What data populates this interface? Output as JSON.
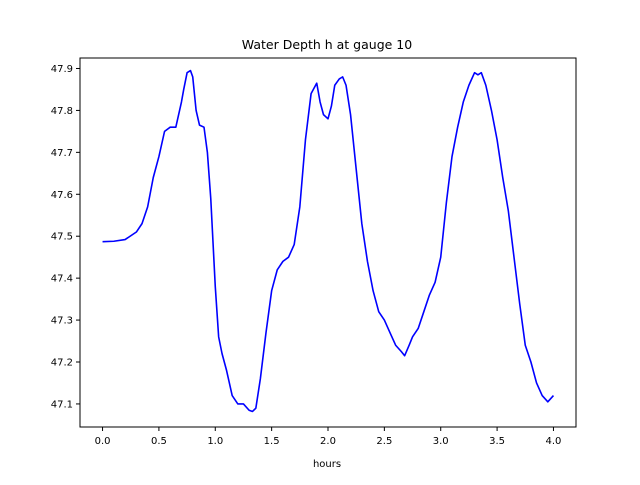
{
  "chart_data": {
    "type": "line",
    "title": "Water Depth h at gauge 10",
    "xlabel": "hours",
    "ylabel": "",
    "xlim": [
      -0.2,
      4.2
    ],
    "ylim": [
      47.045,
      47.925
    ],
    "xticks": [
      0.0,
      0.5,
      1.0,
      1.5,
      2.0,
      2.5,
      3.0,
      3.5,
      4.0
    ],
    "xtick_labels": [
      "0.0",
      "0.5",
      "1.0",
      "1.5",
      "2.0",
      "2.5",
      "3.0",
      "3.5",
      "4.0"
    ],
    "yticks": [
      47.1,
      47.2,
      47.3,
      47.4,
      47.5,
      47.6,
      47.7,
      47.8,
      47.9
    ],
    "ytick_labels": [
      "47.1",
      "47.2",
      "47.3",
      "47.4",
      "47.5",
      "47.6",
      "47.7",
      "47.8",
      "47.9"
    ],
    "grid": false,
    "series": [
      {
        "color": "#0000ff",
        "x": [
          0.0,
          0.1,
          0.2,
          0.3,
          0.35,
          0.4,
          0.45,
          0.5,
          0.55,
          0.6,
          0.65,
          0.7,
          0.72,
          0.75,
          0.78,
          0.8,
          0.83,
          0.86,
          0.9,
          0.93,
          0.96,
          1.0,
          1.03,
          1.06,
          1.1,
          1.15,
          1.2,
          1.25,
          1.3,
          1.33,
          1.36,
          1.4,
          1.45,
          1.5,
          1.55,
          1.6,
          1.65,
          1.7,
          1.75,
          1.8,
          1.85,
          1.9,
          1.93,
          1.96,
          2.0,
          2.03,
          2.06,
          2.1,
          2.13,
          2.16,
          2.2,
          2.25,
          2.3,
          2.35,
          2.4,
          2.45,
          2.5,
          2.55,
          2.6,
          2.65,
          2.68,
          2.72,
          2.75,
          2.8,
          2.85,
          2.9,
          2.95,
          3.0,
          3.05,
          3.1,
          3.15,
          3.2,
          3.25,
          3.3,
          3.33,
          3.36,
          3.4,
          3.45,
          3.5,
          3.55,
          3.6,
          3.65,
          3.7,
          3.75,
          3.8,
          3.85,
          3.9,
          3.95,
          4.0
        ],
        "y": [
          47.487,
          47.488,
          47.492,
          47.51,
          47.53,
          47.57,
          47.64,
          47.69,
          47.75,
          47.76,
          47.76,
          47.82,
          47.85,
          47.89,
          47.895,
          47.88,
          47.8,
          47.765,
          47.76,
          47.7,
          47.59,
          47.38,
          47.26,
          47.22,
          47.18,
          47.12,
          47.1,
          47.1,
          47.085,
          47.082,
          47.09,
          47.16,
          47.27,
          47.37,
          47.42,
          47.44,
          47.45,
          47.48,
          47.57,
          47.73,
          47.84,
          47.865,
          47.82,
          47.79,
          47.78,
          47.81,
          47.86,
          47.875,
          47.88,
          47.86,
          47.79,
          47.66,
          47.53,
          47.44,
          47.37,
          47.32,
          47.3,
          47.27,
          47.24,
          47.225,
          47.215,
          47.24,
          47.26,
          47.28,
          47.32,
          47.36,
          47.39,
          47.45,
          47.58,
          47.69,
          47.76,
          47.82,
          47.86,
          47.89,
          47.885,
          47.89,
          47.86,
          47.8,
          47.73,
          47.64,
          47.56,
          47.45,
          47.34,
          47.24,
          47.2,
          47.15,
          47.12,
          47.105,
          47.12
        ]
      }
    ]
  }
}
